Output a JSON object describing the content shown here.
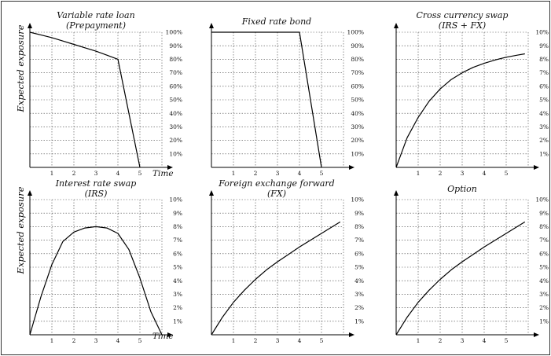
{
  "chart_data": [
    {
      "type": "line",
      "title": "Variable rate loan",
      "subtitle": "(Prepayment)",
      "ylabel": "Expected exposure",
      "xlabel": "Time",
      "x_ticks": [
        "1",
        "2",
        "3",
        "4",
        "5"
      ],
      "y_ticks": [
        "10%",
        "20%",
        "30%",
        "40%",
        "50%",
        "60%",
        "70%",
        "80%",
        "90%",
        "100%"
      ],
      "xlim": [
        0,
        6
      ],
      "ylim": [
        0,
        100
      ],
      "grid": true,
      "series": [
        {
          "x": [
            0,
            0.5,
            1,
            1.5,
            2,
            2.5,
            3,
            3.5,
            4,
            4.25,
            4.5,
            4.75,
            5
          ],
          "y": [
            100,
            98,
            96,
            93.5,
            91,
            88.5,
            86,
            83,
            80,
            60,
            40,
            20,
            0
          ]
        }
      ]
    },
    {
      "type": "line",
      "title": "Fixed rate bond",
      "subtitle": "",
      "ylabel": "",
      "xlabel": "",
      "x_ticks": [
        "1",
        "2",
        "3",
        "4",
        "5"
      ],
      "y_ticks": [
        "10%",
        "20%",
        "30%",
        "40%",
        "50%",
        "60%",
        "70%",
        "80%",
        "90%",
        "100%"
      ],
      "xlim": [
        0,
        6
      ],
      "ylim": [
        0,
        100
      ],
      "grid": true,
      "series": [
        {
          "x": [
            0,
            1,
            2,
            3,
            4,
            4.5,
            5
          ],
          "y": [
            100,
            100,
            100,
            100,
            100,
            50,
            0
          ]
        }
      ]
    },
    {
      "type": "line",
      "title": "Cross currency swap",
      "subtitle": "(IRS + FX)",
      "ylabel": "",
      "xlabel": "",
      "x_ticks": [
        "1",
        "2",
        "3",
        "4",
        "5"
      ],
      "y_ticks": [
        "1%",
        "2%",
        "3%",
        "4%",
        "5%",
        "6%",
        "7%",
        "8%",
        "9%",
        "10%"
      ],
      "xlim": [
        0,
        6
      ],
      "ylim": [
        0,
        10
      ],
      "grid": true,
      "series": [
        {
          "x": [
            0,
            0.5,
            1,
            1.5,
            2,
            2.5,
            3,
            3.5,
            4,
            4.5,
            5,
            5.5,
            5.85
          ],
          "y": [
            0,
            2.2,
            3.7,
            4.9,
            5.8,
            6.5,
            7.0,
            7.4,
            7.7,
            7.95,
            8.15,
            8.3,
            8.4
          ]
        }
      ]
    },
    {
      "type": "line",
      "title": "Interest rate swap",
      "subtitle": "(IRS)",
      "ylabel": "Expected exposure",
      "xlabel": "Time",
      "x_ticks": [
        "1",
        "2",
        "3",
        "4",
        "5"
      ],
      "y_ticks": [
        "1%",
        "2%",
        "3%",
        "4%",
        "5%",
        "6%",
        "7%",
        "8%",
        "9%",
        "10%"
      ],
      "xlim": [
        0,
        6
      ],
      "ylim": [
        0,
        10
      ],
      "grid": true,
      "series": [
        {
          "x": [
            0,
            0.5,
            1,
            1.5,
            2,
            2.5,
            3,
            3.5,
            4,
            4.5,
            5,
            5.5,
            6
          ],
          "y": [
            0,
            2.8,
            5.2,
            6.9,
            7.6,
            7.9,
            8.0,
            7.9,
            7.5,
            6.3,
            4.2,
            1.7,
            0
          ]
        }
      ]
    },
    {
      "type": "line",
      "title": "Foreign exchange forward",
      "subtitle": "(FX)",
      "ylabel": "",
      "xlabel": "",
      "x_ticks": [
        "1",
        "2",
        "3",
        "4",
        "5"
      ],
      "y_ticks": [
        "1%",
        "2%",
        "3%",
        "4%",
        "5%",
        "6%",
        "7%",
        "8%",
        "9%",
        "10%"
      ],
      "xlim": [
        0,
        6
      ],
      "ylim": [
        0,
        10
      ],
      "grid": true,
      "series": [
        {
          "x": [
            0,
            0.5,
            1,
            1.5,
            2,
            2.5,
            3,
            3.5,
            4,
            4.5,
            5,
            5.5,
            5.85
          ],
          "y": [
            0,
            1.3,
            2.4,
            3.3,
            4.1,
            4.8,
            5.4,
            5.95,
            6.5,
            7.0,
            7.5,
            8.0,
            8.35
          ]
        }
      ]
    },
    {
      "type": "line",
      "title": "Option",
      "subtitle": "",
      "ylabel": "",
      "xlabel": "",
      "x_ticks": [
        "1",
        "2",
        "3",
        "4",
        "5"
      ],
      "y_ticks": [
        "1%",
        "2%",
        "3%",
        "4%",
        "5%",
        "6%",
        "7%",
        "8%",
        "9%",
        "10%"
      ],
      "xlim": [
        0,
        6
      ],
      "ylim": [
        0,
        10
      ],
      "grid": true,
      "series": [
        {
          "x": [
            0,
            0.5,
            1,
            1.5,
            2,
            2.5,
            3,
            3.5,
            4,
            4.5,
            5,
            5.5,
            5.85
          ],
          "y": [
            0,
            1.3,
            2.4,
            3.3,
            4.1,
            4.8,
            5.4,
            5.95,
            6.5,
            7.0,
            7.5,
            8.0,
            8.35
          ]
        }
      ]
    }
  ]
}
